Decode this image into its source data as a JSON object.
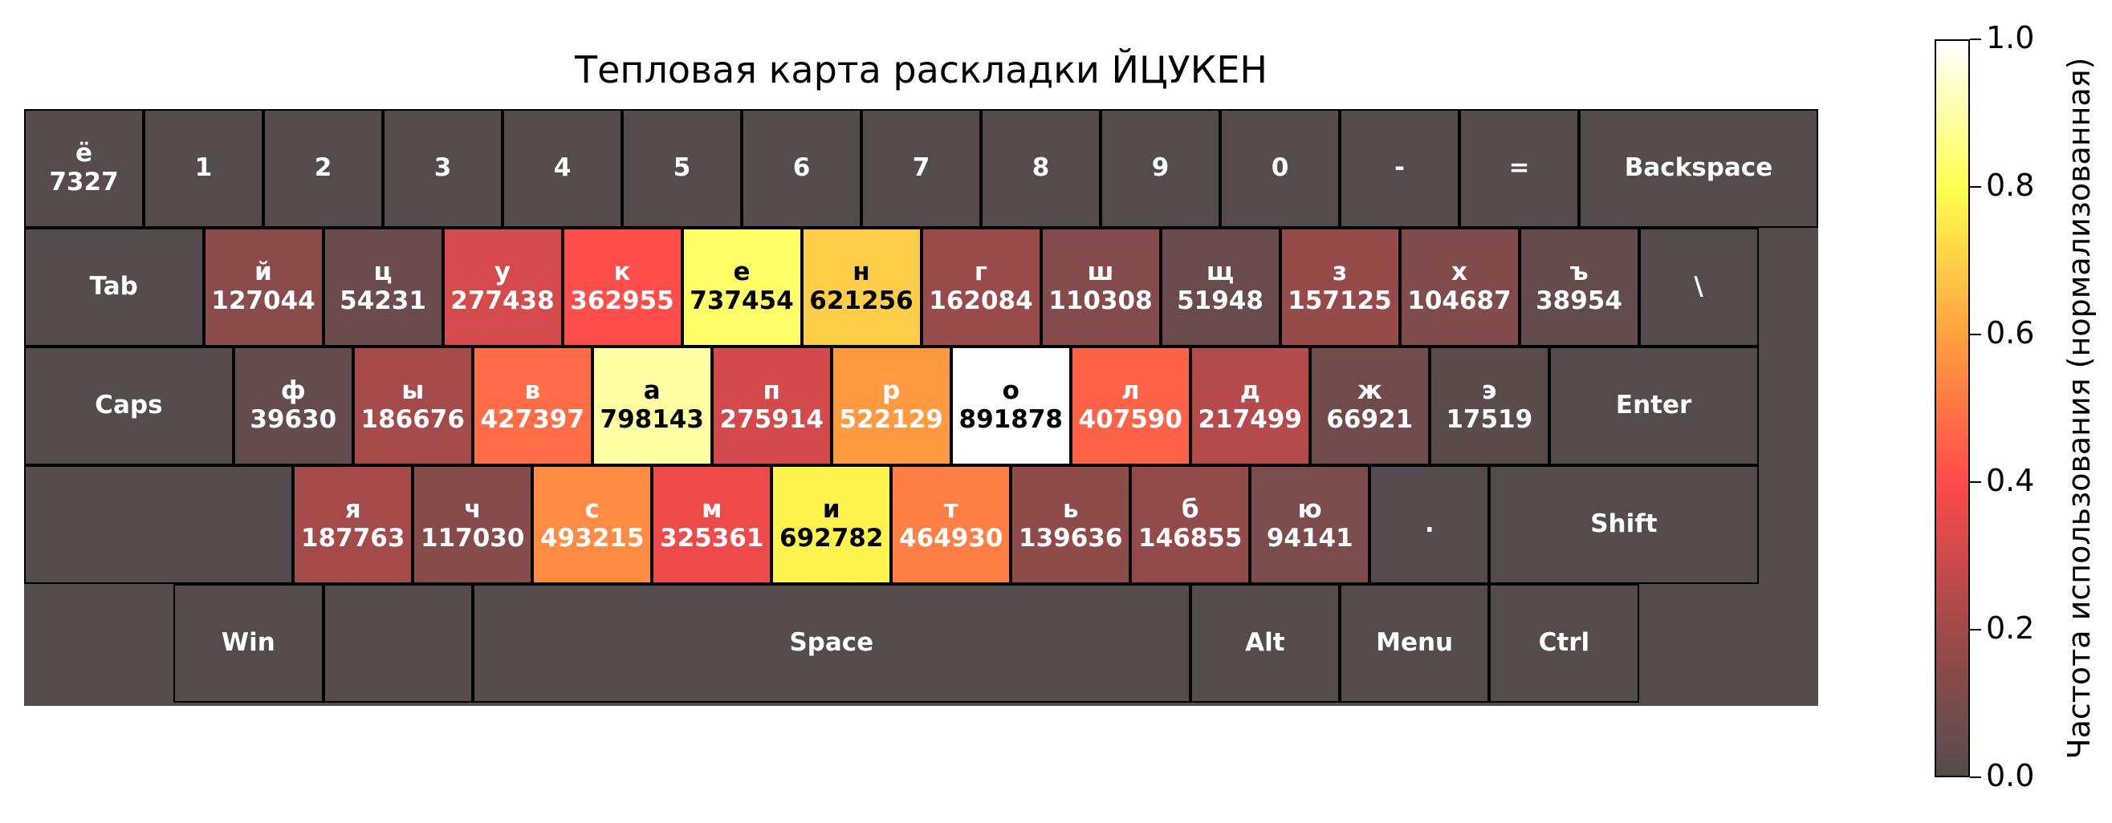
{
  "chart_data": {
    "type": "heatmap",
    "title": "Тепловая карта раскладки ЙЦУКЕН",
    "colorbar": {
      "label": "Частота использования (нормализованная)",
      "range": [
        0.0,
        1.0
      ],
      "ticks": [
        "0.0",
        "0.2",
        "0.4",
        "0.6",
        "0.8",
        "1.0"
      ],
      "colors": [
        "#544c4c",
        "#a04a4a",
        "#ff4a4a",
        "#ffa040",
        "#ffff50",
        "#ffffff"
      ]
    },
    "max_count": 891878,
    "rows": [
      [
        {
          "label": "ё",
          "count": 7327
        },
        {
          "label": "1"
        },
        {
          "label": "2"
        },
        {
          "label": "3"
        },
        {
          "label": "4"
        },
        {
          "label": "5"
        },
        {
          "label": "6"
        },
        {
          "label": "7"
        },
        {
          "label": "8"
        },
        {
          "label": "9"
        },
        {
          "label": "0"
        },
        {
          "label": "-"
        },
        {
          "label": "="
        },
        {
          "label": "Backspace"
        }
      ],
      [
        {
          "label": "Tab"
        },
        {
          "label": "й",
          "count": 127044
        },
        {
          "label": "ц",
          "count": 54231
        },
        {
          "label": "у",
          "count": 277438
        },
        {
          "label": "к",
          "count": 362955
        },
        {
          "label": "е",
          "count": 737454
        },
        {
          "label": "н",
          "count": 621256
        },
        {
          "label": "г",
          "count": 162084
        },
        {
          "label": "ш",
          "count": 110308
        },
        {
          "label": "щ",
          "count": 51948
        },
        {
          "label": "з",
          "count": 157125
        },
        {
          "label": "х",
          "count": 104687
        },
        {
          "label": "ъ",
          "count": 38954
        },
        {
          "label": "\\"
        }
      ],
      [
        {
          "label": "Caps"
        },
        {
          "label": "ф",
          "count": 39630
        },
        {
          "label": "ы",
          "count": 186676
        },
        {
          "label": "в",
          "count": 427397
        },
        {
          "label": "а",
          "count": 798143
        },
        {
          "label": "п",
          "count": 275914
        },
        {
          "label": "р",
          "count": 522129
        },
        {
          "label": "о",
          "count": 891878
        },
        {
          "label": "л",
          "count": 407590
        },
        {
          "label": "д",
          "count": 217499
        },
        {
          "label": "ж",
          "count": 66921
        },
        {
          "label": "э",
          "count": 17519
        },
        {
          "label": "Enter"
        }
      ],
      [
        {
          "label": ""
        },
        {
          "label": "я",
          "count": 187763
        },
        {
          "label": "ч",
          "count": 117030
        },
        {
          "label": "с",
          "count": 493215
        },
        {
          "label": "м",
          "count": 325361
        },
        {
          "label": "и",
          "count": 692782
        },
        {
          "label": "т",
          "count": 464930
        },
        {
          "label": "ь",
          "count": 139636
        },
        {
          "label": "б",
          "count": 146855
        },
        {
          "label": "ю",
          "count": 94141
        },
        {
          "label": "."
        },
        {
          "label": "Shift"
        }
      ],
      [
        {
          "label": "Win"
        },
        {
          "label": ""
        },
        {
          "label": "Space"
        },
        {
          "label": "Alt"
        },
        {
          "label": "Menu"
        },
        {
          "label": "Ctrl"
        }
      ]
    ]
  }
}
